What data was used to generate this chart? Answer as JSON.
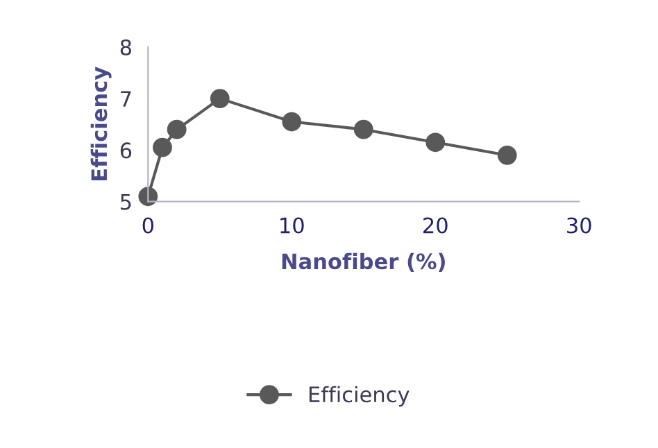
{
  "chart_data": {
    "type": "line",
    "xlabel": "Nanofiber (%)",
    "ylabel": "Efficiency",
    "x": [
      0,
      1,
      2,
      5,
      10,
      15,
      20,
      25
    ],
    "series": [
      {
        "name": "Efficiency",
        "color": "#595959",
        "values": [
          5.1,
          6.05,
          6.4,
          7.0,
          6.55,
          6.4,
          6.15,
          5.9
        ]
      }
    ],
    "xlim": [
      0,
      30
    ],
    "xticks": [
      0,
      10,
      20,
      30
    ],
    "ylim": [
      5,
      8
    ],
    "yticks": [
      5,
      6,
      7,
      8
    ],
    "grid": false,
    "legend": "bottom",
    "marker": "circle",
    "line_style": "solid"
  }
}
